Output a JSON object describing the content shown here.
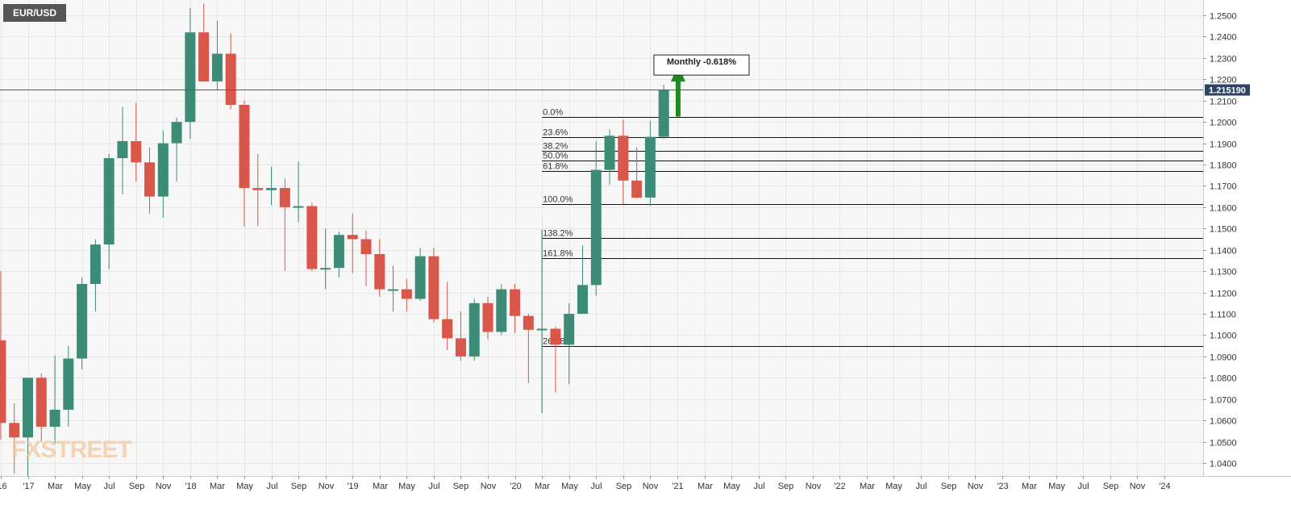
{
  "symbol_label": "EUR/USD",
  "watermark": "FXSTREET",
  "annotation_label": "Monthly -0.618%",
  "colors": {
    "up": "#3d8c78",
    "down": "#d9574a",
    "plot_bg": "#f7f7f7",
    "grid": "#e6e6e6",
    "price_line": "#3b5aa6",
    "price_badge": "#2d4466",
    "arrow": "#1f8a1f",
    "symbol_badge": "#555555",
    "watermark": "#f2c9a0"
  },
  "chart_data": {
    "type": "candlestick",
    "title": "EUR/USD",
    "interval": "monthly",
    "ylim": [
      1.035,
      1.255
    ],
    "yticks": [
      "1.2500",
      "1.2400",
      "1.2300",
      "1.2200",
      "1.2100",
      "1.2000",
      "1.1900",
      "1.1800",
      "1.1700",
      "1.1600",
      "1.1500",
      "1.1400",
      "1.1300",
      "1.1200",
      "1.1100",
      "1.1000",
      "1.0900",
      "1.0800",
      "1.0700",
      "1.0600",
      "1.0500",
      "1.0400"
    ],
    "xticks": [
      "'16",
      "'17",
      "Mar",
      "May",
      "Jul",
      "Sep",
      "Nov",
      "'18",
      "Mar",
      "May",
      "Jul",
      "Sep",
      "Nov",
      "'19",
      "Mar",
      "May",
      "Jul",
      "Sep",
      "Nov",
      "'20",
      "Mar",
      "May",
      "Jul",
      "Sep",
      "Nov",
      "'21",
      "Mar",
      "May",
      "Jul",
      "Sep",
      "Nov",
      "'22",
      "Mar",
      "May",
      "Jul",
      "Sep",
      "Nov",
      "'23",
      "Mar",
      "May",
      "Jul",
      "Sep",
      "Nov",
      "'24"
    ],
    "current_price": 1.21519,
    "current_price_label": "1.215190",
    "candles": [
      {
        "t": "2016-11",
        "o": 1.0975,
        "h": 1.13,
        "l": 1.051,
        "c": 1.0588
      },
      {
        "t": "2016-12",
        "o": 1.0588,
        "h": 1.068,
        "l": 1.035,
        "c": 1.052
      },
      {
        "t": "2017-01",
        "o": 1.052,
        "h": 1.08,
        "l": 1.034,
        "c": 1.08
      },
      {
        "t": "2017-02",
        "o": 1.08,
        "h": 1.082,
        "l": 1.05,
        "c": 1.057
      },
      {
        "t": "2017-03",
        "o": 1.057,
        "h": 1.0905,
        "l": 1.049,
        "c": 1.065
      },
      {
        "t": "2017-04",
        "o": 1.065,
        "h": 1.095,
        "l": 1.057,
        "c": 1.089
      },
      {
        "t": "2017-05",
        "o": 1.089,
        "h": 1.127,
        "l": 1.084,
        "c": 1.124
      },
      {
        "t": "2017-06",
        "o": 1.124,
        "h": 1.145,
        "l": 1.111,
        "c": 1.1425
      },
      {
        "t": "2017-07",
        "o": 1.1425,
        "h": 1.185,
        "l": 1.131,
        "c": 1.183
      },
      {
        "t": "2017-08",
        "o": 1.183,
        "h": 1.207,
        "l": 1.166,
        "c": 1.191
      },
      {
        "t": "2017-09",
        "o": 1.191,
        "h": 1.209,
        "l": 1.172,
        "c": 1.181
      },
      {
        "t": "2017-10",
        "o": 1.181,
        "h": 1.188,
        "l": 1.157,
        "c": 1.165
      },
      {
        "t": "2017-11",
        "o": 1.165,
        "h": 1.196,
        "l": 1.155,
        "c": 1.19
      },
      {
        "t": "2017-12",
        "o": 1.19,
        "h": 1.202,
        "l": 1.172,
        "c": 1.2
      },
      {
        "t": "2018-01",
        "o": 1.2,
        "h": 1.2535,
        "l": 1.192,
        "c": 1.242
      },
      {
        "t": "2018-02",
        "o": 1.242,
        "h": 1.2555,
        "l": 1.22,
        "c": 1.219
      },
      {
        "t": "2018-03",
        "o": 1.219,
        "h": 1.2475,
        "l": 1.215,
        "c": 1.232
      },
      {
        "t": "2018-04",
        "o": 1.232,
        "h": 1.2415,
        "l": 1.206,
        "c": 1.208
      },
      {
        "t": "2018-05",
        "o": 1.208,
        "h": 1.21,
        "l": 1.151,
        "c": 1.169
      },
      {
        "t": "2018-06",
        "o": 1.169,
        "h": 1.185,
        "l": 1.151,
        "c": 1.168
      },
      {
        "t": "2018-07",
        "o": 1.168,
        "h": 1.179,
        "l": 1.161,
        "c": 1.169
      },
      {
        "t": "2018-08",
        "o": 1.169,
        "h": 1.1735,
        "l": 1.13,
        "c": 1.16
      },
      {
        "t": "2018-09",
        "o": 1.16,
        "h": 1.1815,
        "l": 1.153,
        "c": 1.1605
      },
      {
        "t": "2018-10",
        "o": 1.1605,
        "h": 1.162,
        "l": 1.13,
        "c": 1.131
      },
      {
        "t": "2018-11",
        "o": 1.131,
        "h": 1.15,
        "l": 1.1215,
        "c": 1.1315
      },
      {
        "t": "2018-12",
        "o": 1.1315,
        "h": 1.1485,
        "l": 1.127,
        "c": 1.147
      },
      {
        "t": "2019-01",
        "o": 1.147,
        "h": 1.157,
        "l": 1.129,
        "c": 1.145
      },
      {
        "t": "2019-02",
        "o": 1.145,
        "h": 1.149,
        "l": 1.123,
        "c": 1.138
      },
      {
        "t": "2019-03",
        "o": 1.138,
        "h": 1.145,
        "l": 1.118,
        "c": 1.1215
      },
      {
        "t": "2019-04",
        "o": 1.1215,
        "h": 1.1325,
        "l": 1.111,
        "c": 1.1215
      },
      {
        "t": "2019-05",
        "o": 1.1215,
        "h": 1.1265,
        "l": 1.111,
        "c": 1.117
      },
      {
        "t": "2019-06",
        "o": 1.117,
        "h": 1.141,
        "l": 1.116,
        "c": 1.137
      },
      {
        "t": "2019-07",
        "o": 1.137,
        "h": 1.141,
        "l": 1.106,
        "c": 1.1075
      },
      {
        "t": "2019-08",
        "o": 1.1075,
        "h": 1.125,
        "l": 1.093,
        "c": 1.0985
      },
      {
        "t": "2019-09",
        "o": 1.0985,
        "h": 1.111,
        "l": 1.088,
        "c": 1.09
      },
      {
        "t": "2019-10",
        "o": 1.09,
        "h": 1.117,
        "l": 1.088,
        "c": 1.115
      },
      {
        "t": "2019-11",
        "o": 1.115,
        "h": 1.118,
        "l": 1.098,
        "c": 1.1015
      },
      {
        "t": "2019-12",
        "o": 1.1015,
        "h": 1.124,
        "l": 1.1,
        "c": 1.1215
      },
      {
        "t": "2020-01",
        "o": 1.1215,
        "h": 1.124,
        "l": 1.101,
        "c": 1.109
      },
      {
        "t": "2020-02",
        "o": 1.109,
        "h": 1.11,
        "l": 1.0775,
        "c": 1.1025
      },
      {
        "t": "2020-03",
        "o": 1.1025,
        "h": 1.1495,
        "l": 1.0635,
        "c": 1.103
      },
      {
        "t": "2020-04",
        "o": 1.103,
        "h": 1.104,
        "l": 1.073,
        "c": 1.0955
      },
      {
        "t": "2020-05",
        "o": 1.0955,
        "h": 1.115,
        "l": 1.077,
        "c": 1.11
      },
      {
        "t": "2020-06",
        "o": 1.11,
        "h": 1.142,
        "l": 1.11,
        "c": 1.1235
      },
      {
        "t": "2020-07",
        "o": 1.1235,
        "h": 1.191,
        "l": 1.1185,
        "c": 1.1775
      },
      {
        "t": "2020-08",
        "o": 1.1775,
        "h": 1.1965,
        "l": 1.1705,
        "c": 1.1935
      },
      {
        "t": "2020-09",
        "o": 1.1935,
        "h": 1.201,
        "l": 1.1615,
        "c": 1.1725
      },
      {
        "t": "2020-10",
        "o": 1.1725,
        "h": 1.188,
        "l": 1.164,
        "c": 1.1645
      },
      {
        "t": "2020-11",
        "o": 1.1645,
        "h": 1.2005,
        "l": 1.1605,
        "c": 1.193
      },
      {
        "t": "2020-12",
        "o": 1.193,
        "h": 1.2175,
        "l": 1.192,
        "c": 1.215
      }
    ],
    "fib_levels": [
      {
        "label": "0.0%",
        "value": 1.2025
      },
      {
        "label": "23.6%",
        "value": 1.193
      },
      {
        "label": "38.2%",
        "value": 1.1865
      },
      {
        "label": "50.0%",
        "value": 1.182
      },
      {
        "label": "61.8%",
        "value": 1.177
      },
      {
        "label": "100.0%",
        "value": 1.1615
      },
      {
        "label": "138.2%",
        "value": 1.1455
      },
      {
        "label": "161.8%",
        "value": 1.136
      },
      {
        "label": "261.8%",
        "value": 1.095
      }
    ],
    "fib_start_month": "2020-03",
    "arrow": {
      "month": "2021-01",
      "from": 1.2025,
      "to": 1.225
    },
    "annotation": {
      "month": "2021-01",
      "value": 1.2265
    }
  }
}
